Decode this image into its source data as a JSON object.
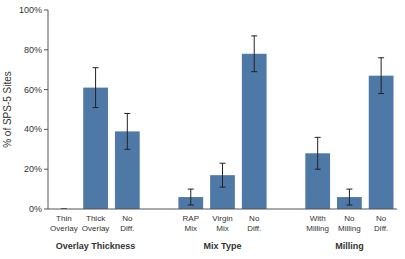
{
  "chart_data": {
    "type": "bar",
    "y_label": "% of SPS-5 Sites",
    "categories": [
      "Thin\nOverlay",
      "Thick\nOverlay",
      "No\nDiff.",
      "RAP\nMix",
      "Virgin\nMix",
      "No\nDiff.",
      "With\nMilling",
      "No\nMilling",
      "No\nDiff."
    ],
    "groups": [
      "Overlay Thickness",
      "Mix Type",
      "Milling"
    ],
    "values": [
      0,
      61,
      39,
      6,
      17,
      78,
      28,
      6,
      67
    ],
    "error_bars": [
      0,
      10,
      9,
      4,
      6,
      9,
      8,
      4,
      9
    ],
    "ylim": [
      0,
      100
    ],
    "yticks": [
      {
        "value": 0,
        "label": "0%"
      },
      {
        "value": 20,
        "label": "20%"
      },
      {
        "value": 40,
        "label": "40%"
      },
      {
        "value": 60,
        "label": "60%"
      },
      {
        "value": 80,
        "label": "80%"
      },
      {
        "value": 100,
        "label": "100%"
      }
    ],
    "grid": false
  }
}
